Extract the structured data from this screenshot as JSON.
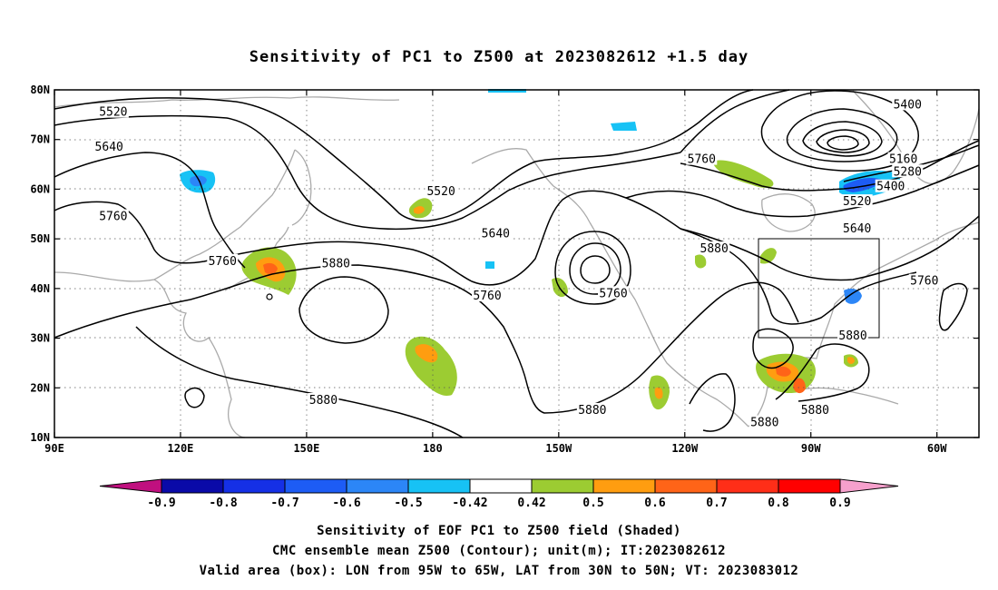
{
  "chart_data": {
    "type": "heatmap",
    "title": "Sensitivity of PC1 to Z500 at 2023082612 +1.5 day",
    "map": {
      "lon_range": [
        90,
        310
      ],
      "lat_range": [
        10,
        80
      ],
      "x_ticks": [
        "90E",
        "120E",
        "150E",
        "180",
        "150W",
        "120W",
        "90W",
        "60W"
      ],
      "x_tick_lons": [
        90,
        120,
        150,
        180,
        210,
        240,
        270,
        300
      ],
      "y_ticks": [
        "80N",
        "70N",
        "60N",
        "50N",
        "40N",
        "30N",
        "20N",
        "10N"
      ],
      "y_tick_lats": [
        80,
        70,
        60,
        50,
        40,
        30,
        20,
        10
      ],
      "grid": "dotted every 30° longitude and 10° latitude"
    },
    "colorbar": {
      "labels": [
        "-0.9",
        "-0.8",
        "-0.7",
        "-0.6",
        "-0.5",
        "-0.42",
        "0.42",
        "0.5",
        "0.6",
        "0.7",
        "0.8",
        "0.9"
      ],
      "colors": [
        "#c0107f",
        "#0a0aa8",
        "#1530e6",
        "#1d5cf5",
        "#2c86f7",
        "#17c2f5",
        "#ffffff",
        "#9ccc32",
        "#ff9d10",
        "#ff6418",
        "#ff2e18",
        "#ff0000",
        "#f6a0cc"
      ]
    },
    "contour_levels": [
      5160,
      5280,
      5400,
      5520,
      5640,
      5760,
      5880
    ],
    "contour_labels": [
      {
        "text": "5520",
        "lon": 104,
        "lat": 75.5
      },
      {
        "text": "5640",
        "lon": 103,
        "lat": 68.5
      },
      {
        "text": "5760",
        "lon": 104,
        "lat": 54.5
      },
      {
        "text": "5760",
        "lon": 130,
        "lat": 45.5
      },
      {
        "text": "5880",
        "lon": 157,
        "lat": 45
      },
      {
        "text": "5880",
        "lon": 154,
        "lat": 17.5
      },
      {
        "text": "5520",
        "lon": 182,
        "lat": 59.5
      },
      {
        "text": "5640",
        "lon": 195,
        "lat": 51
      },
      {
        "text": "5760",
        "lon": 193,
        "lat": 38.5
      },
      {
        "text": "5760",
        "lon": 223,
        "lat": 39
      },
      {
        "text": "5760",
        "lon": 244,
        "lat": 66
      },
      {
        "text": "5880",
        "lon": 247,
        "lat": 48
      },
      {
        "text": "5880",
        "lon": 218,
        "lat": 15.5
      },
      {
        "text": "5880",
        "lon": 259,
        "lat": 13
      },
      {
        "text": "5880",
        "lon": 271,
        "lat": 15.5
      },
      {
        "text": "5880",
        "lon": 280,
        "lat": 30.5
      },
      {
        "text": "5400",
        "lon": 293,
        "lat": 77
      },
      {
        "text": "5160",
        "lon": 292,
        "lat": 66
      },
      {
        "text": "5280",
        "lon": 293,
        "lat": 63.5
      },
      {
        "text": "5400",
        "lon": 289,
        "lat": 60.5
      },
      {
        "text": "5520",
        "lon": 281,
        "lat": 57.5
      },
      {
        "text": "5640",
        "lon": 281,
        "lat": 52
      },
      {
        "text": "5760",
        "lon": 297,
        "lat": 41.5
      }
    ],
    "valid_box": {
      "lon": [
        265,
        295
      ],
      "lat": [
        30,
        50
      ]
    },
    "shaded_regions_note": "positive sensitivity (green/orange) over Japan, 180/40N, central Pacific near 20N, Mexico coast, Gulf of Mexico/Caribbean, Hudson Bay; negative (blue) near 120E/60N, Labrador, US East Coast"
  },
  "colorbar_labels": [
    "-0.9",
    "-0.8",
    "-0.7",
    "-0.6",
    "-0.5",
    "-0.42",
    "0.42",
    "0.5",
    "0.6",
    "0.7",
    "0.8",
    "0.9"
  ],
  "footer": {
    "line1": "Sensitivity of EOF PC1 to Z500 field (Shaded)",
    "line2": "CMC ensemble mean Z500 (Contour); unit(m); IT:2023082612",
    "line3": "Valid area (box): LON from 95W to 65W, LAT from 30N to 50N; VT: 2023083012"
  }
}
